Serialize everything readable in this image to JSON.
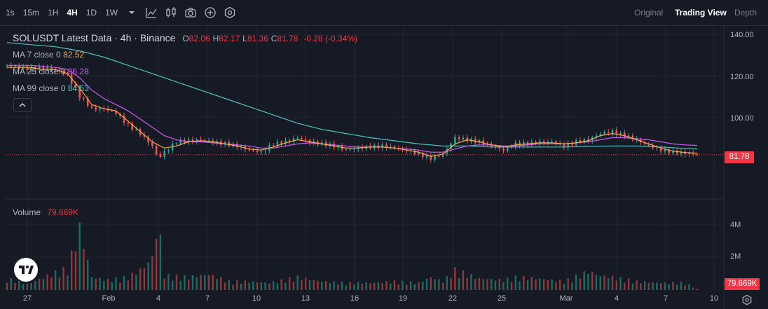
{
  "toolbar": {
    "timeframes": [
      {
        "label": "1s",
        "active": false
      },
      {
        "label": "15m",
        "active": false
      },
      {
        "label": "1H",
        "active": false
      },
      {
        "label": "4H",
        "active": true
      },
      {
        "label": "1D",
        "active": false
      },
      {
        "label": "1W",
        "active": false
      }
    ],
    "icons": [
      "indicators-icon",
      "candle-type-icon",
      "camera-icon",
      "add-icon",
      "settings-hex-icon"
    ],
    "views": [
      {
        "label": "Original",
        "active": false
      },
      {
        "label": "Trading View",
        "active": true
      },
      {
        "label": "Depth",
        "active": false
      }
    ]
  },
  "legend": {
    "symbol": "SOLUSDT Latest Data · 4h · Binance",
    "open_label": "O",
    "open": "82.06",
    "high_label": "H",
    "high": "82.17",
    "low_label": "L",
    "low": "81.36",
    "close_label": "C",
    "close": "81.78",
    "change": "-0.28 (-0.34%)",
    "ma7_label": "MA 7 close 0",
    "ma7_value": "82.52",
    "ma25_label": "MA 25 close 0",
    "ma25_value": "86.28",
    "ma99_label": "MA 99 close 0",
    "ma99_value": "84.53",
    "volume_label": "Volume",
    "volume_value": "79.669K"
  },
  "price_axis": [
    "140.00",
    "120.00",
    "100.00",
    "81.78"
  ],
  "volume_axis": [
    "4M",
    "2M",
    "79.669K"
  ],
  "time_axis": [
    "27",
    "Feb",
    "4",
    "7",
    "10",
    "13",
    "16",
    "19",
    "22",
    "25",
    "Mar",
    "4",
    "7",
    "10"
  ],
  "colors": {
    "up": "#26a69a",
    "down": "#ef5350",
    "ma7": "#f7a94b",
    "ma25": "#c85af0",
    "ma99": "#4fc3c1",
    "price_tag": "#f23645"
  },
  "chart_data": {
    "type": "candlestick",
    "interval": "4h",
    "y_range": [
      80,
      140
    ],
    "volume_range": [
      0,
      4000000
    ],
    "current_price": 81.78,
    "price_line": [
      [
        0,
        125
      ],
      [
        6,
        124
      ],
      [
        12,
        123.5
      ],
      [
        18,
        124
      ],
      [
        24,
        123
      ],
      [
        30,
        120
      ],
      [
        36,
        110
      ],
      [
        42,
        104
      ],
      [
        48,
        104
      ],
      [
        54,
        102
      ],
      [
        60,
        96
      ],
      [
        66,
        92
      ],
      [
        72,
        86
      ],
      [
        75,
        80
      ],
      [
        78,
        83
      ],
      [
        84,
        88
      ],
      [
        90,
        88.5
      ],
      [
        96,
        89
      ],
      [
        102,
        88
      ],
      [
        108,
        87
      ],
      [
        114,
        86
      ],
      [
        120,
        84
      ],
      [
        126,
        83
      ],
      [
        132,
        87
      ],
      [
        138,
        88
      ],
      [
        144,
        90
      ],
      [
        150,
        88
      ],
      [
        156,
        87
      ],
      [
        162,
        86
      ],
      [
        168,
        84
      ],
      [
        174,
        85
      ],
      [
        180,
        85.5
      ],
      [
        186,
        86
      ],
      [
        192,
        85
      ],
      [
        198,
        84
      ],
      [
        204,
        82
      ],
      [
        210,
        80
      ],
      [
        216,
        82
      ],
      [
        222,
        90
      ],
      [
        228,
        89
      ],
      [
        234,
        88
      ],
      [
        240,
        86
      ],
      [
        246,
        84
      ],
      [
        252,
        87
      ],
      [
        258,
        87
      ],
      [
        264,
        88
      ],
      [
        270,
        88
      ],
      [
        276,
        86
      ],
      [
        282,
        88
      ],
      [
        288,
        89
      ],
      [
        294,
        92
      ],
      [
        300,
        93
      ],
      [
        306,
        91
      ],
      [
        312,
        89
      ],
      [
        318,
        86
      ],
      [
        324,
        84
      ],
      [
        330,
        83
      ],
      [
        336,
        82.5
      ],
      [
        342,
        81.78
      ]
    ],
    "ma7": [
      [
        0,
        124
      ],
      [
        6,
        124
      ],
      [
        12,
        124
      ],
      [
        18,
        123
      ],
      [
        24,
        123
      ],
      [
        30,
        121
      ],
      [
        36,
        114
      ],
      [
        42,
        106
      ],
      [
        48,
        104
      ],
      [
        54,
        103
      ],
      [
        60,
        98
      ],
      [
        66,
        93
      ],
      [
        72,
        88
      ],
      [
        78,
        85
      ],
      [
        84,
        86
      ],
      [
        90,
        88
      ],
      [
        96,
        88.5
      ],
      [
        102,
        88
      ],
      [
        108,
        87
      ],
      [
        114,
        86
      ],
      [
        120,
        84.5
      ],
      [
        126,
        84
      ],
      [
        132,
        85.5
      ],
      [
        138,
        87.5
      ],
      [
        144,
        89
      ],
      [
        150,
        88
      ],
      [
        156,
        87
      ],
      [
        162,
        86
      ],
      [
        168,
        85
      ],
      [
        174,
        85
      ],
      [
        180,
        85.5
      ],
      [
        186,
        85.5
      ],
      [
        192,
        85
      ],
      [
        198,
        84
      ],
      [
        204,
        83
      ],
      [
        210,
        81
      ],
      [
        216,
        82
      ],
      [
        222,
        87
      ],
      [
        228,
        89
      ],
      [
        234,
        88
      ],
      [
        240,
        86.5
      ],
      [
        246,
        85.5
      ],
      [
        252,
        86.5
      ],
      [
        258,
        87
      ],
      [
        264,
        87.5
      ],
      [
        270,
        87.5
      ],
      [
        276,
        87
      ],
      [
        282,
        87.5
      ],
      [
        288,
        88.5
      ],
      [
        294,
        91
      ],
      [
        300,
        92
      ],
      [
        306,
        91
      ],
      [
        312,
        89
      ],
      [
        318,
        87
      ],
      [
        324,
        85
      ],
      [
        330,
        83.5
      ],
      [
        336,
        82.8
      ],
      [
        342,
        82.52
      ]
    ],
    "ma25": [
      [
        0,
        125
      ],
      [
        12,
        125
      ],
      [
        24,
        124
      ],
      [
        30,
        123
      ],
      [
        36,
        119
      ],
      [
        42,
        113
      ],
      [
        48,
        109
      ],
      [
        54,
        106
      ],
      [
        60,
        103
      ],
      [
        66,
        99
      ],
      [
        72,
        95
      ],
      [
        78,
        91
      ],
      [
        84,
        89
      ],
      [
        90,
        88
      ],
      [
        96,
        88
      ],
      [
        102,
        87.5
      ],
      [
        108,
        87
      ],
      [
        114,
        86.5
      ],
      [
        120,
        86
      ],
      [
        126,
        85
      ],
      [
        132,
        85
      ],
      [
        138,
        86
      ],
      [
        144,
        87
      ],
      [
        150,
        87.5
      ],
      [
        156,
        87
      ],
      [
        162,
        86.5
      ],
      [
        168,
        86
      ],
      [
        174,
        85.5
      ],
      [
        180,
        85.5
      ],
      [
        186,
        85.5
      ],
      [
        192,
        85
      ],
      [
        198,
        84.5
      ],
      [
        204,
        84
      ],
      [
        210,
        83
      ],
      [
        216,
        83
      ],
      [
        222,
        84.5
      ],
      [
        228,
        86
      ],
      [
        234,
        86.5
      ],
      [
        240,
        86.5
      ],
      [
        246,
        86
      ],
      [
        252,
        86
      ],
      [
        258,
        86.5
      ],
      [
        264,
        87
      ],
      [
        270,
        87
      ],
      [
        276,
        87
      ],
      [
        282,
        87.5
      ],
      [
        288,
        88
      ],
      [
        294,
        89
      ],
      [
        300,
        90
      ],
      [
        306,
        90
      ],
      [
        312,
        89.5
      ],
      [
        318,
        89
      ],
      [
        324,
        88
      ],
      [
        330,
        87
      ],
      [
        336,
        86.5
      ],
      [
        342,
        86.28
      ]
    ],
    "ma99": [
      [
        0,
        136
      ],
      [
        12,
        135
      ],
      [
        24,
        134
      ],
      [
        36,
        132
      ],
      [
        48,
        129
      ],
      [
        60,
        125
      ],
      [
        72,
        121
      ],
      [
        84,
        117
      ],
      [
        96,
        113
      ],
      [
        108,
        109
      ],
      [
        120,
        105
      ],
      [
        132,
        101
      ],
      [
        144,
        97
      ],
      [
        156,
        94
      ],
      [
        168,
        92
      ],
      [
        180,
        90
      ],
      [
        192,
        88.5
      ],
      [
        204,
        87
      ],
      [
        216,
        86
      ],
      [
        228,
        86
      ],
      [
        240,
        85.5
      ],
      [
        252,
        85.5
      ],
      [
        264,
        85.5
      ],
      [
        276,
        85.5
      ],
      [
        288,
        85.8
      ],
      [
        300,
        86
      ],
      [
        312,
        86
      ],
      [
        324,
        85.5
      ],
      [
        336,
        84.8
      ],
      [
        342,
        84.53
      ]
    ],
    "volume": [
      [
        0,
        0.8
      ],
      [
        10,
        0.4
      ],
      [
        20,
        1.0
      ],
      [
        30,
        1.5
      ],
      [
        36,
        4.3
      ],
      [
        42,
        0.9
      ],
      [
        50,
        0.7
      ],
      [
        60,
        0.9
      ],
      [
        68,
        1.6
      ],
      [
        72,
        2.3
      ],
      [
        75,
        4.8
      ],
      [
        78,
        1.0
      ],
      [
        90,
        0.9
      ],
      [
        100,
        1.1
      ],
      [
        110,
        0.6
      ],
      [
        120,
        0.6
      ],
      [
        130,
        0.5
      ],
      [
        144,
        0.9
      ],
      [
        156,
        0.6
      ],
      [
        168,
        0.5
      ],
      [
        180,
        0.5
      ],
      [
        192,
        0.6
      ],
      [
        204,
        0.5
      ],
      [
        210,
        0.9
      ],
      [
        216,
        0.6
      ],
      [
        222,
        1.4
      ],
      [
        234,
        0.8
      ],
      [
        246,
        0.7
      ],
      [
        252,
        0.9
      ],
      [
        264,
        0.8
      ],
      [
        276,
        0.6
      ],
      [
        288,
        1.3
      ],
      [
        294,
        1.0
      ],
      [
        300,
        0.9
      ],
      [
        312,
        0.6
      ],
      [
        324,
        0.5
      ],
      [
        336,
        0.5
      ],
      [
        342,
        0.08
      ]
    ],
    "date_labels": [
      "27",
      "Feb",
      "4",
      "7",
      "10",
      "13",
      "16",
      "19",
      "22",
      "25",
      "Mar",
      "4",
      "7",
      "10"
    ]
  }
}
